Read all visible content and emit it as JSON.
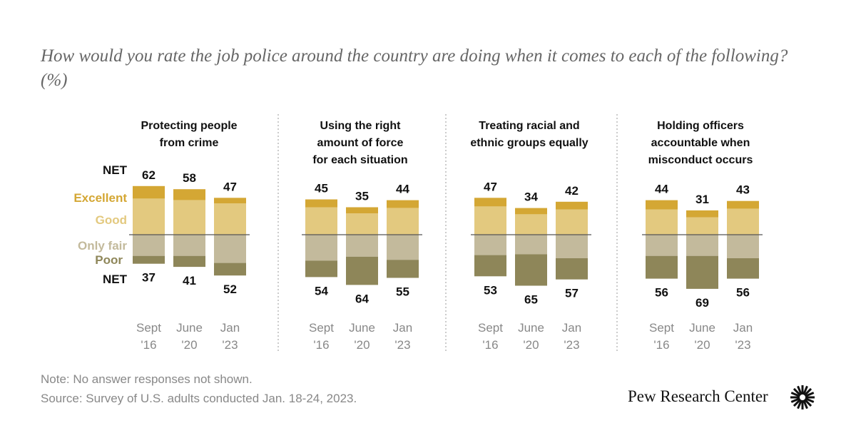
{
  "title": "How would you rate the job police around the country are doing when it comes to each of the following? (%)",
  "note": "Note: No answer responses not shown.",
  "source": "Source: Survey of U.S. adults conducted Jan. 18-24, 2023.",
  "logo": "Pew Research Center",
  "chart_data": {
    "type": "bar",
    "stacked": "diverging",
    "categories": [
      "Sept '16",
      "June '20",
      "Jan '23"
    ],
    "legend": {
      "net_label": "NET",
      "positive": [
        "Excellent",
        "Good"
      ],
      "negative": [
        "Only fair",
        "Poor"
      ]
    },
    "colors": {
      "Excellent": "#D4A734",
      "Good": "#E3C97F",
      "Only fair": "#C3BA9C",
      "Poor": "#8E8659"
    },
    "panels": [
      {
        "title": [
          "Protecting people",
          "from crime"
        ],
        "net_pos": [
          62,
          58,
          47
        ],
        "net_neg": [
          37,
          41,
          52
        ],
        "excellent": [
          16,
          14,
          7
        ],
        "good": [
          46,
          44,
          40
        ],
        "only_fair": [
          27,
          27,
          36
        ],
        "poor": [
          10,
          14,
          16
        ]
      },
      {
        "title": [
          "Using the right",
          "amount of force",
          "for each situation"
        ],
        "net_pos": [
          45,
          35,
          44
        ],
        "net_neg": [
          54,
          64,
          55
        ],
        "excellent": [
          10,
          8,
          10
        ],
        "good": [
          35,
          27,
          34
        ],
        "only_fair": [
          33,
          28,
          32
        ],
        "poor": [
          21,
          36,
          23
        ]
      },
      {
        "title": [
          "Treating racial and",
          "ethnic groups equally"
        ],
        "net_pos": [
          47,
          34,
          42
        ],
        "net_neg": [
          53,
          65,
          57
        ],
        "excellent": [
          11,
          8,
          10
        ],
        "good": [
          36,
          26,
          32
        ],
        "only_fair": [
          26,
          25,
          30
        ],
        "poor": [
          27,
          40,
          27
        ]
      },
      {
        "title": [
          "Holding officers",
          "accountable when",
          "misconduct occurs"
        ],
        "net_pos": [
          44,
          31,
          43
        ],
        "net_neg": [
          56,
          69,
          56
        ],
        "excellent": [
          12,
          9,
          10
        ],
        "good": [
          32,
          22,
          33
        ],
        "only_fair": [
          27,
          27,
          30
        ],
        "poor": [
          29,
          42,
          26
        ]
      }
    ],
    "category_lines": [
      [
        "Sept",
        "'16"
      ],
      [
        "June",
        "'20"
      ],
      [
        "Jan",
        "'23"
      ]
    ]
  }
}
